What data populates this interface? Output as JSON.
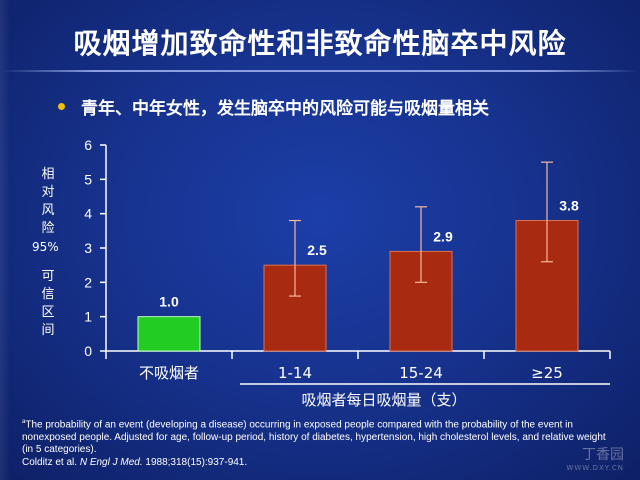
{
  "slide": {
    "title": "吸烟增加致命性和非致命性脑卒中风险",
    "bullet": "青年、中年女性，发生脑卒中的风险可能与吸烟量相关"
  },
  "axis": {
    "ylabel_top": [
      "相",
      "对",
      "风",
      "险"
    ],
    "ylabel_ci": "95%",
    "ylabel_bottom": [
      "可",
      "信",
      "区",
      "间"
    ],
    "xtitle": "吸烟者每日吸烟量（支）"
  },
  "footnote": {
    "marker": "a",
    "text": "The probability of an event (developing a disease) occurring in exposed people compared with the probability of the event in nonexposed people. Adjusted for age, follow-up period, history of diabetes, hypertension, high cholesterol levels, and relative weight (in 5 categories).",
    "cite_authors": "Colditz et al. ",
    "cite_journal": "N Engl J Med.",
    "cite_rest": " 1988;318(15):937-941."
  },
  "watermark": {
    "name": "丁香园",
    "url": "WWW.DXY.CN"
  },
  "colors": {
    "nonsmoker_bar": "#22cc22",
    "smoker_bar": "#a82a10",
    "bullet": "#f0c000",
    "error_bar": "#f5b8a0"
  },
  "chart_data": {
    "type": "bar",
    "categories": [
      "不吸烟者",
      "1-14",
      "15-24",
      "≥25"
    ],
    "values": [
      1.0,
      2.5,
      2.9,
      3.8
    ],
    "value_labels": [
      "1.0",
      "2.5",
      "2.9",
      "3.8"
    ],
    "ci_low": [
      null,
      1.6,
      2.0,
      2.6
    ],
    "ci_high": [
      null,
      3.8,
      4.2,
      5.5
    ],
    "ylim": [
      0,
      6
    ],
    "yticks": [
      "0",
      "1",
      "2",
      "3",
      "4",
      "5",
      "6"
    ],
    "ylabel": "相对风险 95%可信区间",
    "xlabel": "吸烟者每日吸烟量（支）",
    "title": "",
    "grid": false
  }
}
